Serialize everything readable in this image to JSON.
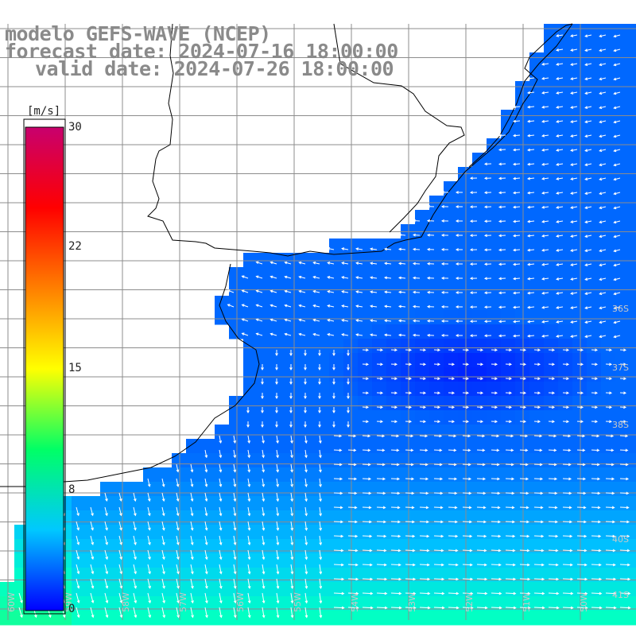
{
  "map": {
    "title_model": "modelo GEFS-WAVE (NCEP)",
    "forecast_line": "forecast date: 2024-07-16 18:00:00",
    "valid_line": "valid date: 2024-07-26 18:00:00",
    "background_color": "#ffffff",
    "land_color": "#ffffff",
    "coast_color": "#000000",
    "grid_color": "#8c8c8c",
    "vector_color": "#ffffff",
    "lat_labels": [
      "36S",
      "37S",
      "38S",
      "40S",
      "41S"
    ],
    "lon_labels": [
      "60W",
      "59W",
      "58W",
      "57W",
      "56W",
      "55W",
      "54W",
      "53W",
      "52W",
      "51W",
      "50W"
    ]
  },
  "colorbar": {
    "unit": "[m/s]",
    "ticks": [
      "30",
      "22",
      "15",
      "8",
      "0"
    ],
    "min": 0,
    "max": 30,
    "colors": [
      "#0000ff",
      "#00c8ff",
      "#00ff66",
      "#ffff00",
      "#ff7f00",
      "#ff0000",
      "#c8006e"
    ]
  }
}
